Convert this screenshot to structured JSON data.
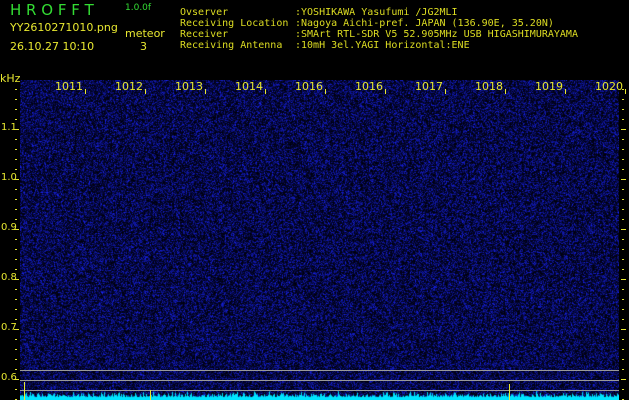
{
  "app": {
    "title": "H R O F F T",
    "version": "1.0.0f"
  },
  "file": {
    "name": "YY2610271010.png",
    "datetime": "26.10.27 10:10"
  },
  "meteor": {
    "label": "meteor",
    "count": "3"
  },
  "info": [
    {
      "label": "Ovserver",
      "value": ":YOSHIKAWA Yasufumi /JG2MLI"
    },
    {
      "label": "Receiving Location",
      "value": ":Nagoya Aichi-pref. JAPAN (136.90E, 35.20N)"
    },
    {
      "label": "Receiver",
      "value": ":SMArt RTL-SDR V5 52.905MHz USB HIGASHIMURAYAMA"
    },
    {
      "label": "Receiving Antenna",
      "value": ":10mH 3el.YAGI Horizontal:ENE"
    }
  ],
  "axes": {
    "y_unit": "kHz",
    "x_ticks": [
      "1011",
      "1012",
      "1013",
      "1014",
      "1016",
      "1016",
      "1017",
      "1018",
      "1019",
      "1020"
    ],
    "y_ticks": [
      "1.1",
      "1.0",
      "0.9",
      "0.8",
      "0.7",
      "0.6"
    ]
  },
  "colors": {
    "background": "#000000",
    "noise": "#1a1aa0",
    "spectrum": "#00e5ff",
    "text": "#e8e830",
    "title": "#33dd33"
  }
}
